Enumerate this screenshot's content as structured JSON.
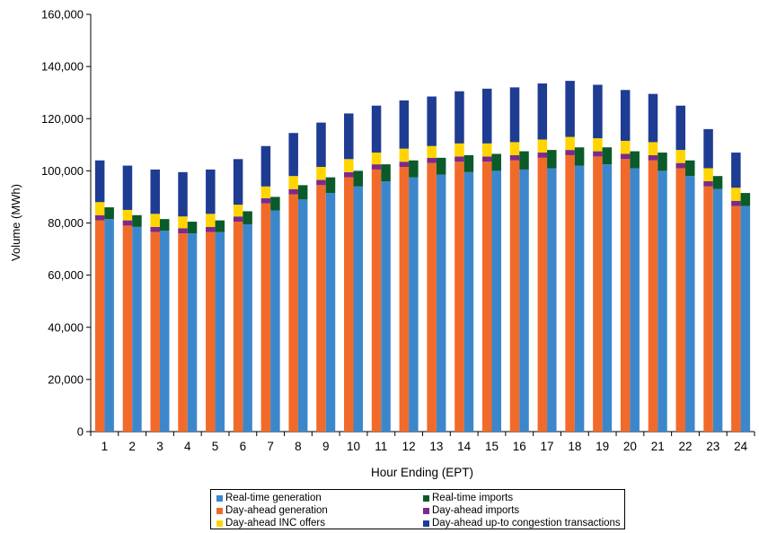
{
  "chart_data": {
    "type": "bar",
    "stacked_pairs": true,
    "title": "",
    "xlabel": "Hour Ending (EPT)",
    "ylabel": "Volume (MWh)",
    "ylim": [
      0,
      160000
    ],
    "yticks": [
      0,
      20000,
      40000,
      60000,
      80000,
      100000,
      120000,
      140000,
      160000
    ],
    "ytick_labels": [
      "0",
      "20,000",
      "40,000",
      "60,000",
      "80,000",
      "100,000",
      "120,000",
      "140,000",
      "160,000"
    ],
    "categories": [
      "1",
      "2",
      "3",
      "4",
      "5",
      "6",
      "7",
      "8",
      "9",
      "10",
      "11",
      "12",
      "13",
      "14",
      "15",
      "16",
      "17",
      "18",
      "19",
      "20",
      "21",
      "22",
      "23",
      "24"
    ],
    "grid": false,
    "legend_position": "bottom",
    "stacks": [
      {
        "stack": "real-time",
        "series": [
          {
            "name": "Real-time generation",
            "color": "#3C87CC",
            "values": [
              81500,
              78500,
              77000,
              76000,
              76500,
              79500,
              84800,
              89000,
              91500,
              94000,
              96000,
              97500,
              98500,
              99500,
              100000,
              100500,
              101000,
              102000,
              102500,
              101000,
              100000,
              98000,
              93000,
              86500
            ]
          },
          {
            "name": "Real-time imports",
            "color": "#0B5A2A",
            "values": [
              4500,
              4500,
              4500,
              4500,
              4500,
              5000,
              5200,
              5500,
              6000,
              6000,
              6500,
              6500,
              6500,
              6500,
              6500,
              7000,
              7000,
              7000,
              6500,
              6500,
              7000,
              6000,
              5000,
              5000
            ]
          }
        ]
      },
      {
        "stack": "day-ahead",
        "series": [
          {
            "name": "Day-ahead generation",
            "color": "#F26A2A",
            "values": [
              81000,
              79000,
              76500,
              76000,
              76500,
              80500,
              87500,
              91000,
              94500,
              97500,
              100500,
              101500,
              103000,
              103500,
              103500,
              104000,
              105000,
              106000,
              105500,
              104500,
              104000,
              101000,
              94000,
              86500
            ]
          },
          {
            "name": "Day-ahead imports",
            "color": "#7B2A8A",
            "values": [
              2000,
              2000,
              2000,
              2000,
              2000,
              2000,
              2000,
              2000,
              2000,
              2000,
              2000,
              2000,
              2000,
              2000,
              2000,
              2000,
              2000,
              2000,
              2000,
              2000,
              2000,
              2000,
              2000,
              2000
            ]
          },
          {
            "name": "Day-ahead INC offers",
            "color": "#FFD500",
            "values": [
              5000,
              4000,
              5000,
              4500,
              5000,
              4500,
              4500,
              5000,
              5000,
              5000,
              4500,
              5000,
              4500,
              5000,
              5000,
              5000,
              5000,
              5000,
              5000,
              5000,
              5000,
              5000,
              5000,
              5000
            ]
          },
          {
            "name": "Day-ahead up-to congestion transactions",
            "color": "#1F3C93",
            "values": [
              16000,
              17000,
              17000,
              17000,
              17000,
              17500,
              15500,
              16500,
              17000,
              17500,
              18000,
              18500,
              19000,
              20000,
              21000,
              21000,
              21500,
              21500,
              20500,
              19500,
              18500,
              17000,
              15000,
              13500
            ]
          }
        ]
      }
    ]
  },
  "legend": {
    "items": [
      {
        "label": "Real-time generation",
        "color": "#3C87CC"
      },
      {
        "label": "Real-time imports",
        "color": "#0B5A2A"
      },
      {
        "label": "Day-ahead generation",
        "color": "#F26A2A"
      },
      {
        "label": "Day-ahead imports",
        "color": "#7B2A8A"
      },
      {
        "label": "Day-ahead INC offers",
        "color": "#FFD500"
      },
      {
        "label": "Day-ahead up-to congestion transactions",
        "color": "#1F3C93"
      }
    ]
  }
}
